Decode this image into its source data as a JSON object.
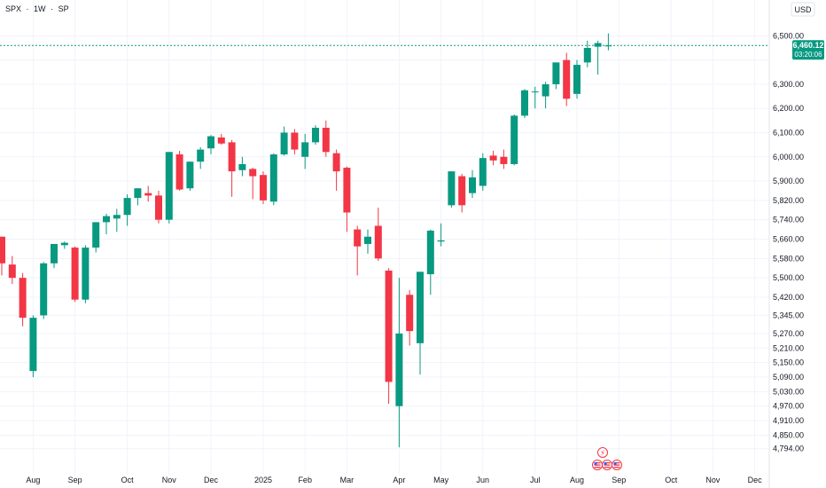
{
  "header": {
    "symbol": "SPX",
    "interval": "1W",
    "exchange": "SP",
    "separator": "·"
  },
  "currency": "USD",
  "last_price": {
    "value": "6,460.12",
    "countdown": "03:20:06",
    "color": "#089981",
    "price": 6460.12
  },
  "colors": {
    "up": "#089981",
    "down": "#f23645",
    "axis_text": "#131722",
    "grid": "#f0f3fa"
  },
  "event_icons": [
    {
      "name": "earnings-icon",
      "category": "Aug 25",
      "glyph": "⚡"
    }
  ],
  "flag_icons": [
    {
      "name": "us-flag-icon",
      "category": "Aug 25"
    },
    {
      "name": "us-flag-icon",
      "category": "Aug 25"
    },
    {
      "name": "us-flag-icon",
      "category": "Aug 25"
    }
  ],
  "chart_data": {
    "type": "candlestick",
    "ylim": [
      4760,
      6560
    ],
    "y_ticks": [
      4794,
      4850,
      4910,
      4970,
      5030,
      5090,
      5150,
      5210,
      5270,
      5345,
      5420,
      5500,
      5580,
      5660,
      5740,
      5820,
      5900,
      6000,
      6100,
      6200,
      6300,
      6400,
      6500
    ],
    "y_tick_labels": [
      "4,794.00",
      "4,850.00",
      "4,910.00",
      "4,970.00",
      "5,030.00",
      "5,090.00",
      "5,150.00",
      "5,210.00",
      "5,270.00",
      "5,345.00",
      "5,420.00",
      "5,500.00",
      "5,580.00",
      "5,660.00",
      "5,740.00",
      "5,820.00",
      "5,900.00",
      "6,000.00",
      "6,100.00",
      "6,200.00",
      "6,300.00",
      "",
      "6,500.00"
    ],
    "x_labels": [
      {
        "label": "Aug",
        "index": 3
      },
      {
        "label": "Sep",
        "index": 7
      },
      {
        "label": "Oct",
        "index": 12
      },
      {
        "label": "Nov",
        "index": 16
      },
      {
        "label": "Dec",
        "index": 20
      },
      {
        "label": "2025",
        "index": 25
      },
      {
        "label": "Feb",
        "index": 29
      },
      {
        "label": "Mar",
        "index": 33
      },
      {
        "label": "Apr",
        "index": 38
      },
      {
        "label": "May",
        "index": 42
      },
      {
        "label": "Jun",
        "index": 46
      },
      {
        "label": "Jul",
        "index": 51
      },
      {
        "label": "Aug",
        "index": 55
      },
      {
        "label": "Sep",
        "index": 59
      },
      {
        "label": "Oct",
        "index": 64
      },
      {
        "label": "Nov",
        "index": 68
      },
      {
        "label": "Dec",
        "index": 72
      }
    ],
    "candles": [
      {
        "o": 5670,
        "h": 5670,
        "l": 5510,
        "c": 5560
      },
      {
        "o": 5555,
        "h": 5590,
        "l": 5475,
        "c": 5500
      },
      {
        "o": 5500,
        "h": 5520,
        "l": 5300,
        "c": 5335
      },
      {
        "o": 5115,
        "h": 5345,
        "l": 5090,
        "c": 5335
      },
      {
        "o": 5345,
        "h": 5565,
        "l": 5330,
        "c": 5560
      },
      {
        "o": 5560,
        "h": 5640,
        "l": 5540,
        "c": 5640
      },
      {
        "o": 5635,
        "h": 5650,
        "l": 5620,
        "c": 5645
      },
      {
        "o": 5625,
        "h": 5630,
        "l": 5400,
        "c": 5410
      },
      {
        "o": 5410,
        "h": 5635,
        "l": 5395,
        "c": 5625
      },
      {
        "o": 5625,
        "h": 5730,
        "l": 5605,
        "c": 5730
      },
      {
        "o": 5730,
        "h": 5765,
        "l": 5680,
        "c": 5755
      },
      {
        "o": 5745,
        "h": 5785,
        "l": 5690,
        "c": 5760
      },
      {
        "o": 5760,
        "h": 5845,
        "l": 5715,
        "c": 5830
      },
      {
        "o": 5830,
        "h": 5870,
        "l": 5800,
        "c": 5870
      },
      {
        "o": 5850,
        "h": 5880,
        "l": 5815,
        "c": 5840
      },
      {
        "o": 5840,
        "h": 5860,
        "l": 5725,
        "c": 5740
      },
      {
        "o": 5740,
        "h": 6020,
        "l": 5725,
        "c": 6020
      },
      {
        "o": 6010,
        "h": 6025,
        "l": 5860,
        "c": 5865
      },
      {
        "o": 5870,
        "h": 5980,
        "l": 5860,
        "c": 5980
      },
      {
        "o": 5980,
        "h": 6040,
        "l": 5950,
        "c": 6030
      },
      {
        "o": 6035,
        "h": 6090,
        "l": 6010,
        "c": 6085
      },
      {
        "o": 6080,
        "h": 6095,
        "l": 6050,
        "c": 6055
      },
      {
        "o": 6060,
        "h": 6070,
        "l": 5835,
        "c": 5940
      },
      {
        "o": 5945,
        "h": 6000,
        "l": 5920,
        "c": 5970
      },
      {
        "o": 5950,
        "h": 5955,
        "l": 5825,
        "c": 5920
      },
      {
        "o": 5925,
        "h": 5940,
        "l": 5805,
        "c": 5820
      },
      {
        "o": 5815,
        "h": 6015,
        "l": 5800,
        "c": 6010
      },
      {
        "o": 6010,
        "h": 6125,
        "l": 6005,
        "c": 6100
      },
      {
        "o": 6100,
        "h": 6115,
        "l": 6010,
        "c": 6030
      },
      {
        "o": 6000,
        "h": 6095,
        "l": 5950,
        "c": 6060
      },
      {
        "o": 6060,
        "h": 6130,
        "l": 6050,
        "c": 6120
      },
      {
        "o": 6120,
        "h": 6150,
        "l": 6000,
        "c": 6020
      },
      {
        "o": 6015,
        "h": 6030,
        "l": 5860,
        "c": 5940
      },
      {
        "o": 5955,
        "h": 5960,
        "l": 5690,
        "c": 5770
      },
      {
        "o": 5700,
        "h": 5715,
        "l": 5510,
        "c": 5630
      },
      {
        "o": 5640,
        "h": 5700,
        "l": 5600,
        "c": 5670
      },
      {
        "o": 5715,
        "h": 5790,
        "l": 5570,
        "c": 5580
      },
      {
        "o": 5530,
        "h": 5540,
        "l": 4980,
        "c": 5070
      },
      {
        "o": 4970,
        "h": 5500,
        "l": 4800,
        "c": 5270
      },
      {
        "o": 5430,
        "h": 5450,
        "l": 5220,
        "c": 5280
      },
      {
        "o": 5230,
        "h": 5525,
        "l": 5100,
        "c": 5525
      },
      {
        "o": 5515,
        "h": 5700,
        "l": 5430,
        "c": 5695
      },
      {
        "o": 5650,
        "h": 5725,
        "l": 5630,
        "c": 5655
      },
      {
        "o": 5800,
        "h": 5940,
        "l": 5790,
        "c": 5940
      },
      {
        "o": 5920,
        "h": 5930,
        "l": 5770,
        "c": 5800
      },
      {
        "o": 5850,
        "h": 5945,
        "l": 5830,
        "c": 5915
      },
      {
        "o": 5880,
        "h": 6015,
        "l": 5860,
        "c": 5995
      },
      {
        "o": 6005,
        "h": 6025,
        "l": 5965,
        "c": 5985
      },
      {
        "o": 6000,
        "h": 6030,
        "l": 5950,
        "c": 5970
      },
      {
        "o": 5970,
        "h": 6175,
        "l": 5965,
        "c": 6170
      },
      {
        "o": 6170,
        "h": 6280,
        "l": 6160,
        "c": 6275
      },
      {
        "o": 6270,
        "h": 6290,
        "l": 6200,
        "c": 6270
      },
      {
        "o": 6250,
        "h": 6310,
        "l": 6200,
        "c": 6300
      },
      {
        "o": 6300,
        "h": 6390,
        "l": 6280,
        "c": 6390
      },
      {
        "o": 6400,
        "h": 6430,
        "l": 6210,
        "c": 6240
      },
      {
        "o": 6260,
        "h": 6400,
        "l": 6240,
        "c": 6380
      },
      {
        "o": 6390,
        "h": 6480,
        "l": 6370,
        "c": 6450
      },
      {
        "o": 6455,
        "h": 6480,
        "l": 6340,
        "c": 6470
      },
      {
        "o": 6460,
        "h": 6510,
        "l": 6440,
        "c": 6460
      }
    ]
  }
}
